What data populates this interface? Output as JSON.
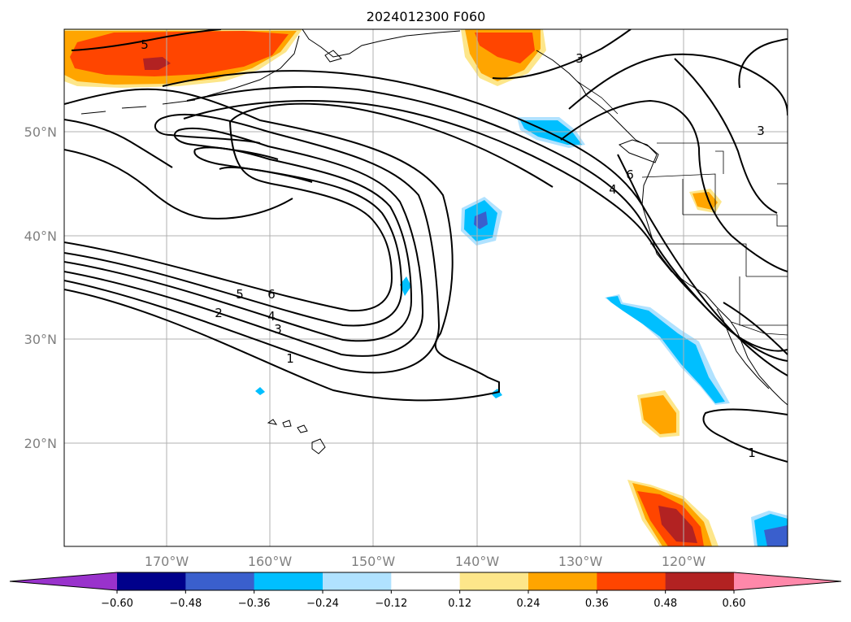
{
  "title": "2024012300 F060",
  "map": {
    "lat_labels": [
      "50°N",
      "40°N",
      "30°N",
      "20°N"
    ],
    "lon_labels": [
      "170°W",
      "160°W",
      "150°W",
      "140°W",
      "130°W",
      "120°W"
    ],
    "contour_labels": [
      "1",
      "2",
      "3",
      "4",
      "5",
      "6",
      "3",
      "3",
      "4",
      "6",
      "5",
      "1"
    ]
  },
  "colorbar": {
    "tick_labels": [
      "−0.60",
      "−0.48",
      "−0.36",
      "−0.24",
      "−0.12",
      "0.12",
      "0.24",
      "0.36",
      "0.48",
      "0.60"
    ],
    "colors": [
      "#9932cc",
      "#00008b",
      "#3a5fcd",
      "#00bfff",
      "#b0e2ff",
      "#ffffff",
      "#fde68a",
      "#ffa500",
      "#ff4500",
      "#b22222",
      "#ff88aa"
    ]
  },
  "fill_colors": {
    "orange_red": "#ff4500",
    "orange": "#ffa500",
    "yellow": "#fde68a",
    "dark_red": "#b22222",
    "deep_sky_blue": "#00bfff",
    "light_blue": "#b0e2ff",
    "royal_blue": "#3a5fcd"
  }
}
